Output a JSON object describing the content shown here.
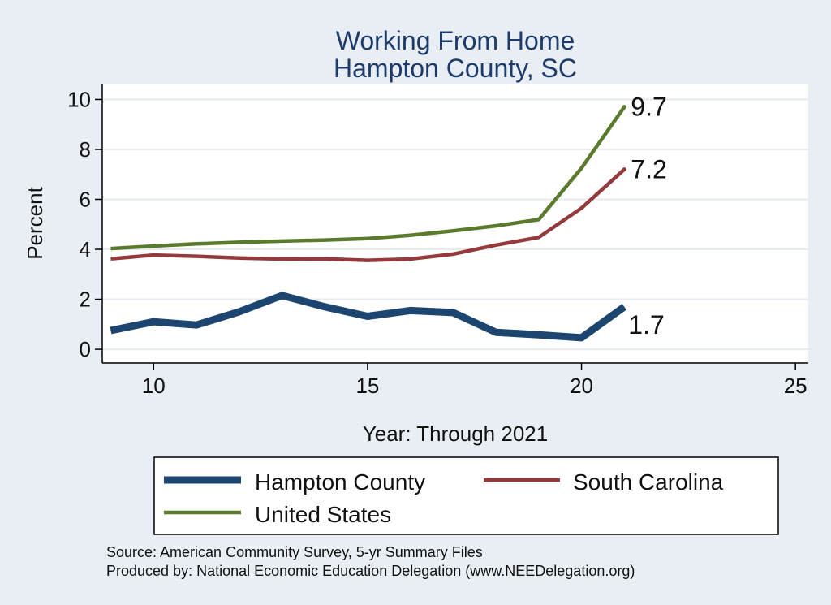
{
  "chart_data": {
    "type": "line",
    "title": [
      "Working From Home",
      "Hampton County, SC"
    ],
    "xlabel": "Year: Through 2021",
    "ylabel": "Percent",
    "xlim": [
      8.8,
      25.3
    ],
    "ylim": [
      -0.55,
      10.6
    ],
    "x_ticks": [
      10,
      15,
      20,
      25
    ],
    "y_ticks": [
      0,
      2,
      4,
      6,
      8,
      10
    ],
    "grid": true,
    "legend_position": "bottom",
    "x": [
      9,
      10,
      11,
      12,
      13,
      14,
      15,
      16,
      17,
      18,
      19,
      20,
      21
    ],
    "series": [
      {
        "name": "Hampton County",
        "color": "#1c4670",
        "values": [
          0.75,
          1.1,
          0.97,
          1.5,
          2.15,
          1.7,
          1.32,
          1.55,
          1.47,
          0.68,
          0.58,
          0.46,
          1.7
        ],
        "end_label": "1.7"
      },
      {
        "name": "South Carolina",
        "color": "#943a3d",
        "values": [
          3.62,
          3.77,
          3.72,
          3.65,
          3.61,
          3.62,
          3.56,
          3.61,
          3.81,
          4.17,
          4.48,
          5.65,
          7.2
        ],
        "end_label": "7.2"
      },
      {
        "name": "United States",
        "color": "#5a7a2d",
        "values": [
          4.03,
          4.13,
          4.22,
          4.28,
          4.33,
          4.37,
          4.43,
          4.56,
          4.74,
          4.94,
          5.19,
          7.25,
          9.7
        ],
        "end_label": "9.7"
      }
    ]
  },
  "footer": {
    "source": "Source: American Community Survey, 5-yr Summary Files",
    "produced": "Produced by: National Economic Education Delegation (www.NEEDelegation.org)"
  }
}
